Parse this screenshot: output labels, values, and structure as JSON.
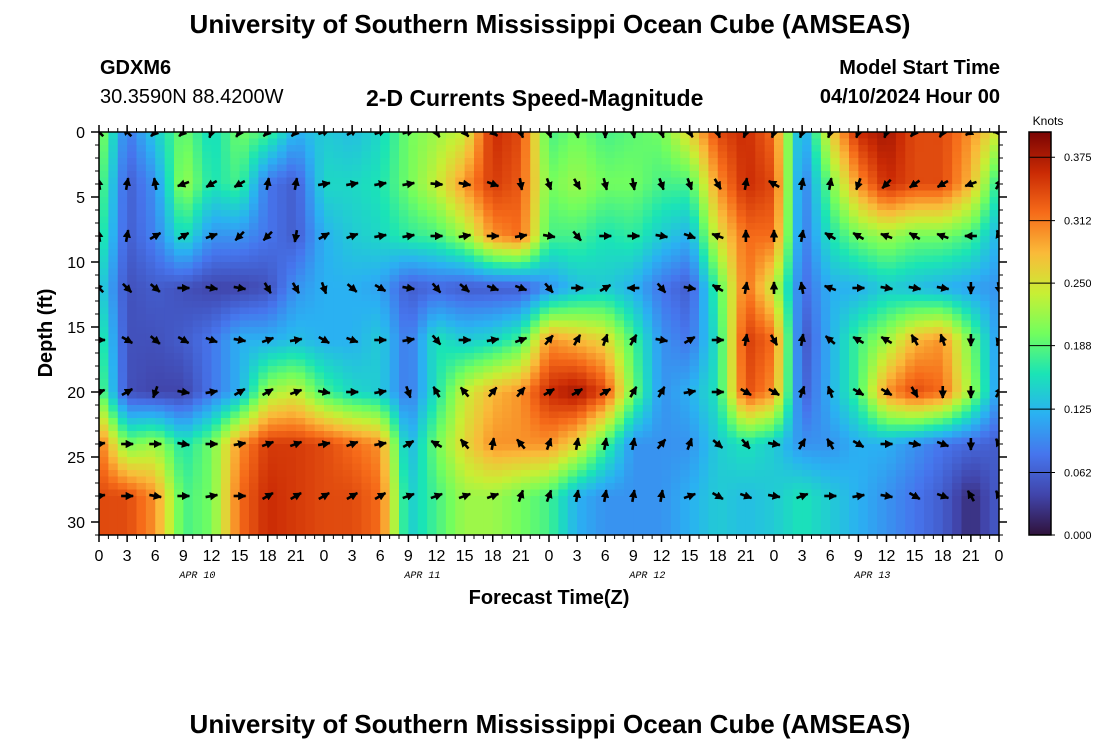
{
  "header": {
    "title": "University of Southern Mississippi Ocean Cube (AMSEAS)",
    "station_id": "GDXM6",
    "coordinates": "30.3590N  88.4200W",
    "subtitle": "2-D Currents Speed-Magnitude",
    "model_start_label": "Model Start Time",
    "model_start_value": "04/10/2024 Hour 00"
  },
  "footer": {
    "title": "University of Southern Mississippi Ocean Cube (AMSEAS)"
  },
  "chart_data": {
    "type": "heatmap",
    "title": "2-D Currents Speed-Magnitude",
    "xlabel": "Forecast Time(Z)",
    "ylabel": "Depth (ft)",
    "x_hours_range": [
      0,
      96
    ],
    "x_tick_labels": [
      "0",
      "3",
      "6",
      "9",
      "12",
      "15",
      "18",
      "21",
      "0",
      "3",
      "6",
      "9",
      "12",
      "15",
      "18",
      "21",
      "0",
      "3",
      "6",
      "9",
      "12",
      "15",
      "18",
      "21",
      "0",
      "3",
      "6",
      "9",
      "12",
      "15",
      "18",
      "21",
      "0"
    ],
    "day_labels": [
      {
        "label": "APR 10",
        "hour": 10.5
      },
      {
        "label": "APR 11",
        "hour": 34.5
      },
      {
        "label": "APR 12",
        "hour": 58.5
      },
      {
        "label": "APR 13",
        "hour": 82.5
      }
    ],
    "ylim": [
      0,
      31
    ],
    "y_inverted": true,
    "y_ticks": [
      0,
      5,
      10,
      15,
      20,
      25,
      30
    ],
    "colorbar": {
      "unit": "Knots",
      "range": [
        0,
        0.4
      ],
      "tick_values": [
        0.0,
        0.062,
        0.125,
        0.188,
        0.25,
        0.312,
        0.375
      ],
      "tick_labels": [
        "0.000",
        "0.062",
        "0.125",
        "0.188",
        "0.250",
        "0.312",
        "0.375"
      ]
    },
    "depth_levels_ft": [
      0,
      4,
      8,
      12,
      16,
      20,
      24,
      28
    ],
    "time_hours": [
      0,
      3,
      6,
      9,
      12,
      15,
      18,
      21,
      24,
      27,
      30,
      33,
      36,
      39,
      42,
      45,
      48,
      51,
      54,
      57,
      60,
      63,
      66,
      69,
      72,
      75,
      78,
      81,
      84,
      87,
      90,
      93,
      96
    ],
    "speed_knots": [
      [
        0.22,
        0.08,
        0.14,
        0.2,
        0.15,
        0.2,
        0.18,
        0.12,
        0.14,
        0.13,
        0.15,
        0.2,
        0.22,
        0.24,
        0.36,
        0.34,
        0.18,
        0.2,
        0.18,
        0.19,
        0.2,
        0.26,
        0.34,
        0.36,
        0.32,
        0.1,
        0.26,
        0.36,
        0.38,
        0.34,
        0.34,
        0.3,
        0.24
      ],
      [
        0.2,
        0.06,
        0.1,
        0.22,
        0.16,
        0.18,
        0.08,
        0.06,
        0.15,
        0.15,
        0.16,
        0.2,
        0.24,
        0.3,
        0.35,
        0.33,
        0.2,
        0.22,
        0.2,
        0.2,
        0.18,
        0.18,
        0.3,
        0.36,
        0.34,
        0.08,
        0.2,
        0.3,
        0.36,
        0.34,
        0.34,
        0.28,
        0.16
      ],
      [
        0.18,
        0.06,
        0.09,
        0.16,
        0.1,
        0.1,
        0.08,
        0.06,
        0.12,
        0.14,
        0.15,
        0.17,
        0.18,
        0.22,
        0.3,
        0.32,
        0.18,
        0.18,
        0.16,
        0.17,
        0.14,
        0.12,
        0.25,
        0.32,
        0.32,
        0.08,
        0.16,
        0.2,
        0.22,
        0.2,
        0.2,
        0.18,
        0.12
      ],
      [
        0.15,
        0.05,
        0.06,
        0.05,
        0.04,
        0.04,
        0.05,
        0.1,
        0.12,
        0.12,
        0.11,
        0.06,
        0.07,
        0.06,
        0.06,
        0.06,
        0.1,
        0.13,
        0.14,
        0.12,
        0.08,
        0.06,
        0.18,
        0.32,
        0.24,
        0.07,
        0.12,
        0.12,
        0.14,
        0.13,
        0.12,
        0.11,
        0.1
      ],
      [
        0.18,
        0.05,
        0.05,
        0.06,
        0.08,
        0.12,
        0.12,
        0.13,
        0.12,
        0.12,
        0.14,
        0.08,
        0.16,
        0.14,
        0.15,
        0.18,
        0.3,
        0.28,
        0.26,
        0.18,
        0.1,
        0.08,
        0.16,
        0.35,
        0.32,
        0.05,
        0.12,
        0.18,
        0.22,
        0.28,
        0.3,
        0.2,
        0.1
      ],
      [
        0.2,
        0.05,
        0.04,
        0.04,
        0.08,
        0.12,
        0.22,
        0.24,
        0.18,
        0.15,
        0.14,
        0.08,
        0.16,
        0.24,
        0.28,
        0.3,
        0.36,
        0.38,
        0.34,
        0.2,
        0.1,
        0.12,
        0.16,
        0.34,
        0.3,
        0.06,
        0.12,
        0.18,
        0.3,
        0.34,
        0.32,
        0.22,
        0.1
      ],
      [
        0.32,
        0.2,
        0.22,
        0.16,
        0.2,
        0.3,
        0.35,
        0.35,
        0.34,
        0.32,
        0.3,
        0.12,
        0.2,
        0.26,
        0.3,
        0.3,
        0.3,
        0.26,
        0.18,
        0.1,
        0.1,
        0.1,
        0.14,
        0.16,
        0.14,
        0.1,
        0.1,
        0.12,
        0.12,
        0.1,
        0.08,
        0.07,
        0.06
      ],
      [
        0.34,
        0.34,
        0.3,
        0.18,
        0.2,
        0.32,
        0.36,
        0.35,
        0.34,
        0.34,
        0.32,
        0.14,
        0.18,
        0.22,
        0.22,
        0.2,
        0.18,
        0.12,
        0.1,
        0.1,
        0.1,
        0.12,
        0.14,
        0.13,
        0.14,
        0.16,
        0.14,
        0.12,
        0.1,
        0.08,
        0.06,
        0.02,
        0.06
      ]
    ],
    "current_direction_deg": [
      [
        315,
        315,
        225,
        225,
        200,
        215,
        225,
        225,
        70,
        60,
        70,
        75,
        150,
        140,
        130,
        160,
        160,
        170,
        180,
        170,
        160,
        150,
        160,
        200,
        200,
        200,
        200,
        200,
        200,
        220,
        210,
        240,
        270
      ],
      [
        350,
        10,
        350,
        250,
        240,
        240,
        10,
        10,
        80,
        80,
        80,
        80,
        95,
        100,
        110,
        170,
        160,
        150,
        165,
        170,
        160,
        160,
        150,
        10,
        300,
        10,
        10,
        200,
        225,
        235,
        240,
        250,
        30
      ],
      [
        350,
        10,
        60,
        60,
        70,
        225,
        225,
        190,
        60,
        70,
        80,
        80,
        90,
        80,
        90,
        80,
        100,
        140,
        90,
        90,
        100,
        110,
        290,
        0,
        0,
        10,
        300,
        300,
        290,
        300,
        290,
        270,
        340
      ],
      [
        315,
        135,
        130,
        90,
        100,
        100,
        150,
        150,
        160,
        130,
        120,
        100,
        140,
        130,
        110,
        110,
        140,
        90,
        60,
        270,
        140,
        100,
        300,
        10,
        0,
        350,
        290,
        90,
        100,
        100,
        100,
        180,
        170
      ],
      [
        90,
        120,
        130,
        120,
        110,
        100,
        70,
        80,
        120,
        110,
        90,
        80,
        140,
        90,
        80,
        70,
        40,
        30,
        20,
        30,
        100,
        60,
        90,
        10,
        150,
        10,
        310,
        300,
        300,
        330,
        340,
        180,
        200
      ],
      [
        70,
        60,
        200,
        100,
        80,
        60,
        60,
        70,
        100,
        90,
        80,
        160,
        330,
        320,
        40,
        40,
        60,
        60,
        60,
        30,
        30,
        80,
        90,
        120,
        120,
        20,
        340,
        120,
        120,
        150,
        180,
        180,
        30
      ],
      [
        80,
        90,
        90,
        100,
        90,
        80,
        70,
        70,
        80,
        70,
        80,
        60,
        300,
        320,
        10,
        320,
        20,
        10,
        10,
        10,
        40,
        20,
        130,
        140,
        100,
        30,
        330,
        120,
        90,
        100,
        110,
        180,
        330
      ],
      [
        80,
        90,
        100,
        90,
        80,
        90,
        60,
        60,
        60,
        60,
        60,
        70,
        70,
        70,
        70,
        20,
        20,
        10,
        10,
        10,
        10,
        70,
        120,
        110,
        100,
        70,
        90,
        80,
        100,
        120,
        110,
        330,
        330
      ]
    ]
  }
}
